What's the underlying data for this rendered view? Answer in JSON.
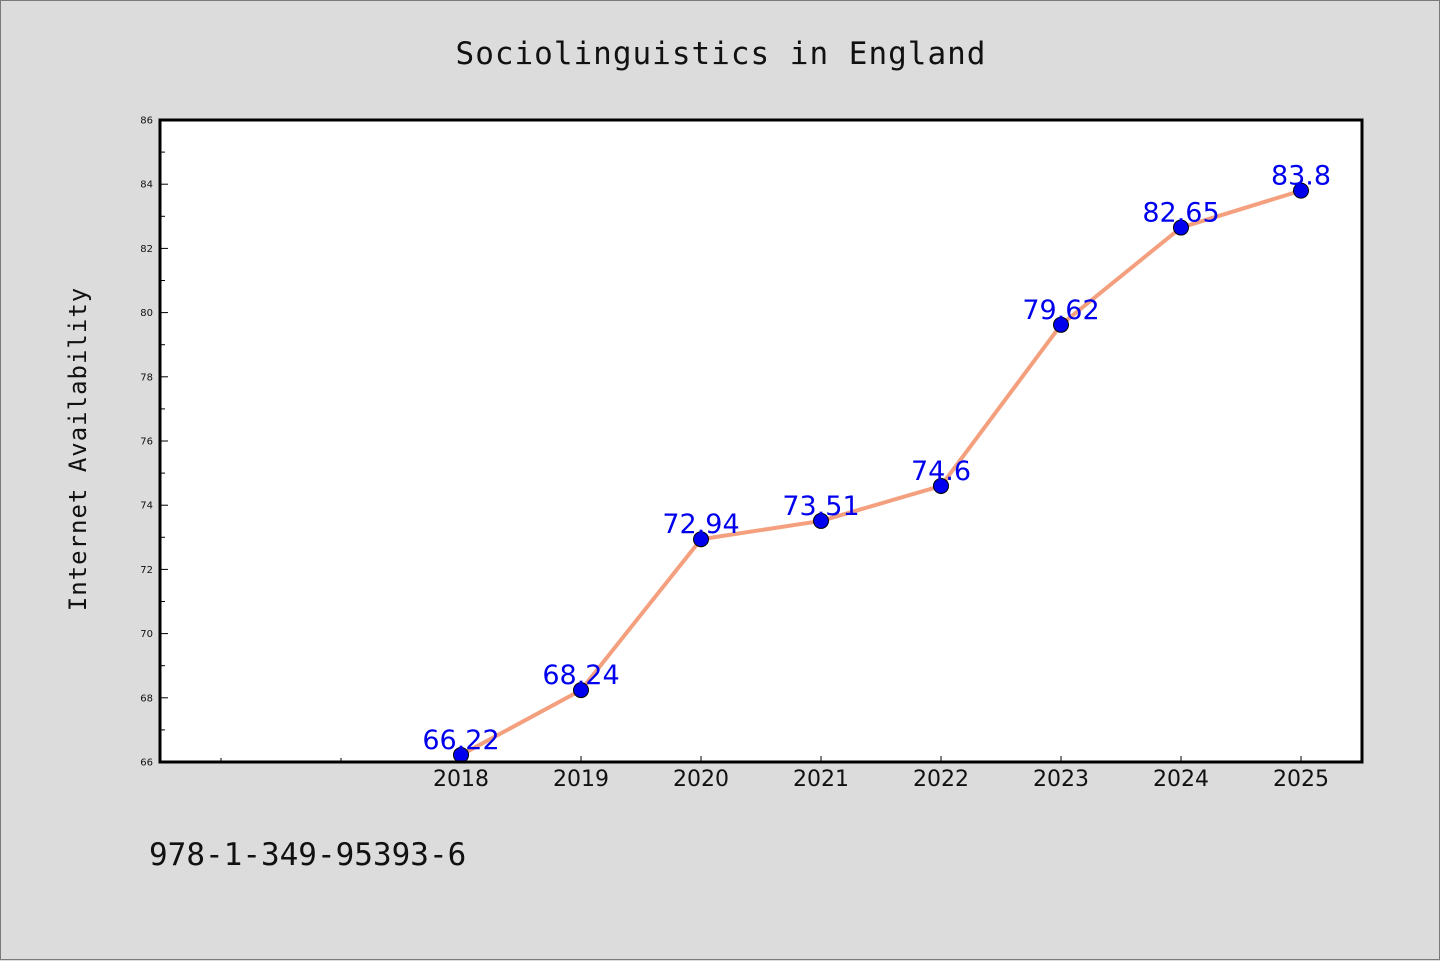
{
  "chart_data": {
    "type": "line",
    "title": "Sociolinguistics in England",
    "xlabel": "",
    "ylabel": "Internet Availability",
    "categories": [
      "2018",
      "2019",
      "2020",
      "2021",
      "2022",
      "2023",
      "2024",
      "2025"
    ],
    "values": [
      66.22,
      68.24,
      72.94,
      73.51,
      74.6,
      79.62,
      82.65,
      83.8
    ],
    "data_labels": [
      "66.22",
      "68.24",
      "72.94",
      "73.51",
      "74.6",
      "79.62",
      "82.65",
      "83.8"
    ],
    "yticks": [
      "66",
      "68",
      "70",
      "72",
      "74",
      "76",
      "78",
      "80",
      "82",
      "84",
      "86"
    ],
    "ylim": [
      66,
      86
    ],
    "grid": false,
    "legend": "none",
    "colors": {
      "line": "#f4a07e",
      "marker": "#0000ee",
      "label": "#0000ee",
      "axis": "#000000",
      "plot_bg": "#ffffff",
      "page_bg": "#dcdcdc"
    }
  },
  "footer": {
    "isbn": "978-1-349-95393-6"
  }
}
